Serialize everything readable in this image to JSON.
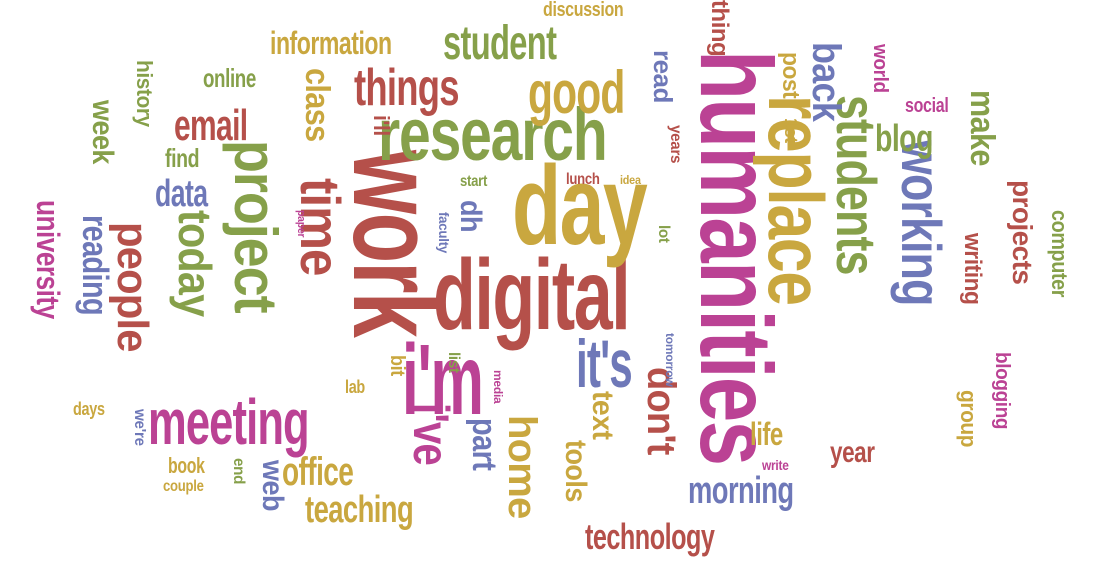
{
  "palette": {
    "brown": "#b5504a",
    "olive": "#86a04a",
    "purple": "#bb4294",
    "blue": "#6e78b8",
    "gold": "#c9a73f"
  },
  "words": [
    {
      "text": "work",
      "color": "brown"
    },
    {
      "text": "humanities",
      "color": "purple"
    },
    {
      "text": "digital",
      "color": "brown"
    },
    {
      "text": "day",
      "color": "gold"
    },
    {
      "text": "research",
      "color": "olive"
    },
    {
      "text": "i'm",
      "color": "purple"
    },
    {
      "text": "replace",
      "color": "gold"
    },
    {
      "text": "students",
      "color": "olive"
    },
    {
      "text": "working",
      "color": "blue"
    },
    {
      "text": "project",
      "color": "olive"
    },
    {
      "text": "time",
      "color": "brown"
    },
    {
      "text": "meeting",
      "color": "purple"
    },
    {
      "text": "today",
      "color": "olive"
    },
    {
      "text": "people",
      "color": "brown"
    },
    {
      "text": "it's",
      "color": "blue"
    },
    {
      "text": "i've",
      "color": "purple"
    },
    {
      "text": "things",
      "color": "brown"
    },
    {
      "text": "good",
      "color": "gold"
    },
    {
      "text": "student",
      "color": "olive"
    },
    {
      "text": "class",
      "color": "gold"
    },
    {
      "text": "email",
      "color": "brown"
    },
    {
      "text": "back",
      "color": "blue"
    },
    {
      "text": "home",
      "color": "gold"
    },
    {
      "text": "don't",
      "color": "brown"
    },
    {
      "text": "morning",
      "color": "blue"
    },
    {
      "text": "office",
      "color": "gold"
    },
    {
      "text": "teaching",
      "color": "gold"
    },
    {
      "text": "technology",
      "color": "brown"
    },
    {
      "text": "reading",
      "color": "blue"
    },
    {
      "text": "university",
      "color": "purple"
    },
    {
      "text": "data",
      "color": "blue"
    },
    {
      "text": "part",
      "color": "blue"
    },
    {
      "text": "text",
      "color": "gold"
    },
    {
      "text": "information",
      "color": "gold"
    },
    {
      "text": "blog",
      "color": "olive"
    },
    {
      "text": "make",
      "color": "olive"
    },
    {
      "text": "projects",
      "color": "brown"
    },
    {
      "text": "writing",
      "color": "brown"
    },
    {
      "text": "life",
      "color": "gold"
    },
    {
      "text": "year",
      "color": "brown"
    },
    {
      "text": "dh",
      "color": "blue"
    },
    {
      "text": "week",
      "color": "olive"
    },
    {
      "text": "history",
      "color": "olive"
    },
    {
      "text": "online",
      "color": "olive"
    },
    {
      "text": "find",
      "color": "olive"
    },
    {
      "text": "read",
      "color": "blue"
    },
    {
      "text": "post",
      "color": "gold"
    },
    {
      "text": "group",
      "color": "gold"
    },
    {
      "text": "computer",
      "color": "olive"
    },
    {
      "text": "blogging",
      "color": "purple"
    },
    {
      "text": "tools",
      "color": "gold"
    },
    {
      "text": "web",
      "color": "blue"
    },
    {
      "text": "book",
      "color": "gold"
    },
    {
      "text": "discussion",
      "color": "gold"
    },
    {
      "text": "thing",
      "color": "brown"
    },
    {
      "text": "social",
      "color": "purple"
    },
    {
      "text": "world",
      "color": "purple"
    },
    {
      "text": "i'll",
      "color": "brown"
    },
    {
      "text": "1st",
      "color": "gold"
    },
    {
      "text": "lab",
      "color": "gold"
    },
    {
      "text": "days",
      "color": "gold"
    },
    {
      "text": "end",
      "color": "olive"
    },
    {
      "text": "couple",
      "color": "gold"
    },
    {
      "text": "start",
      "color": "olive"
    },
    {
      "text": "lunch",
      "color": "brown"
    },
    {
      "text": "idea",
      "color": "gold"
    },
    {
      "text": "years",
      "color": "brown"
    },
    {
      "text": "lot",
      "color": "olive"
    },
    {
      "text": "faculty",
      "color": "blue"
    },
    {
      "text": "bit",
      "color": "gold"
    },
    {
      "text": "list",
      "color": "olive"
    },
    {
      "text": "media",
      "color": "purple"
    },
    {
      "text": "tomorrow",
      "color": "blue"
    },
    {
      "text": "we're",
      "color": "blue"
    },
    {
      "text": "write",
      "color": "purple"
    },
    {
      "text": "paper",
      "color": "purple"
    }
  ]
}
